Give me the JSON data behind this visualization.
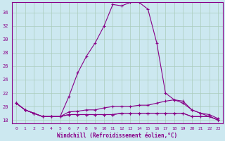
{
  "title": "",
  "xlabel": "Windchill (Refroidissement éolien,°C)",
  "background_color": "#cce8f0",
  "grid_color": "#aaccbb",
  "line_color": "#880088",
  "xlim": [
    -0.5,
    23.5
  ],
  "ylim": [
    17.5,
    35.5
  ],
  "yticks": [
    18,
    20,
    22,
    24,
    26,
    28,
    30,
    32,
    34
  ],
  "xticks": [
    0,
    1,
    2,
    3,
    4,
    5,
    6,
    7,
    8,
    9,
    10,
    11,
    12,
    13,
    14,
    15,
    16,
    17,
    18,
    19,
    20,
    21,
    22,
    23
  ],
  "series": [
    [
      20.5,
      19.5,
      19.0,
      18.5,
      18.5,
      18.5,
      21.5,
      25.0,
      27.5,
      29.5,
      32.0,
      35.2,
      35.0,
      35.5,
      35.5,
      34.5,
      29.5,
      22.0,
      21.0,
      20.8,
      19.5,
      19.0,
      18.5,
      18.0
    ],
    [
      20.5,
      19.5,
      19.0,
      18.5,
      18.5,
      18.5,
      19.2,
      19.3,
      19.5,
      19.5,
      19.8,
      20.0,
      20.0,
      20.0,
      20.2,
      20.2,
      20.5,
      20.8,
      21.0,
      20.5,
      19.5,
      19.0,
      18.8,
      18.2
    ],
    [
      20.5,
      19.5,
      19.0,
      18.5,
      18.5,
      18.5,
      18.8,
      18.8,
      18.8,
      18.8,
      18.8,
      18.8,
      19.0,
      19.0,
      19.0,
      19.0,
      19.0,
      19.0,
      19.0,
      19.0,
      18.5,
      18.5,
      18.5,
      18.0
    ],
    [
      20.5,
      19.5,
      19.0,
      18.5,
      18.5,
      18.5,
      18.8,
      18.8,
      18.8,
      18.8,
      18.8,
      18.8,
      19.0,
      19.0,
      19.0,
      19.0,
      19.0,
      19.0,
      19.0,
      19.0,
      18.5,
      18.5,
      18.5,
      18.0
    ]
  ],
  "marker": "+",
  "markersize": 3,
  "linewidth": 0.8
}
